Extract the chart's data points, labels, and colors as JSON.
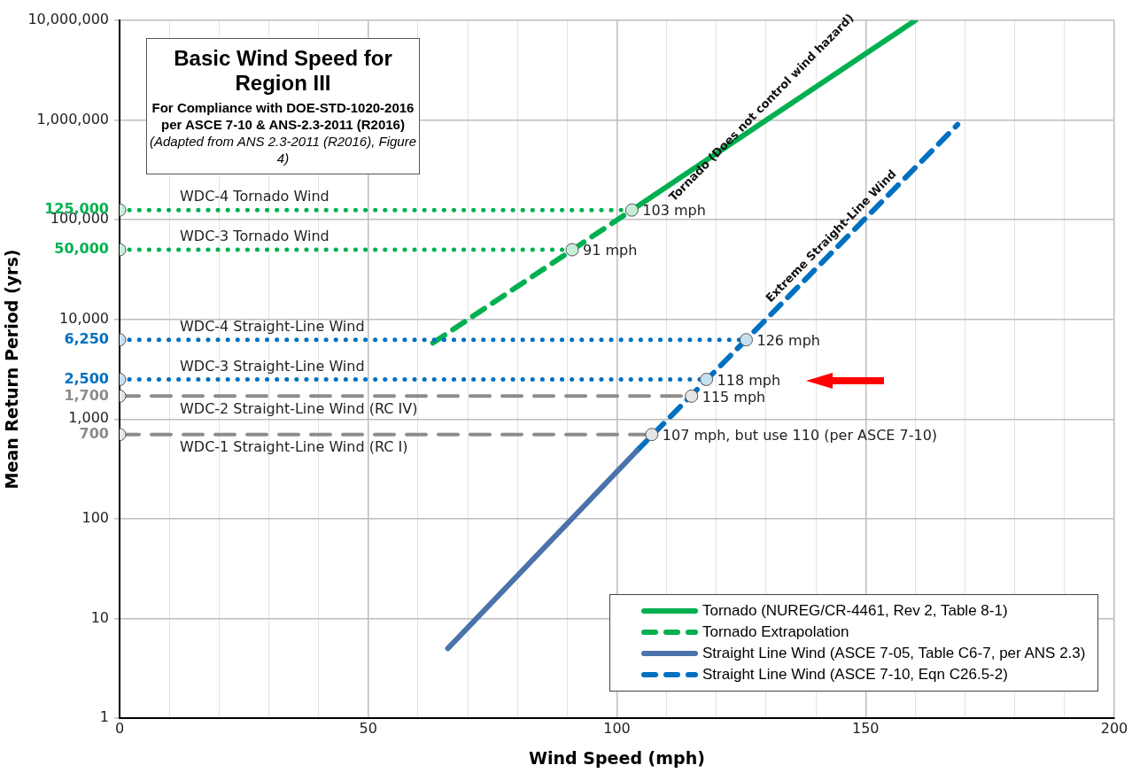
{
  "chart_data": {
    "type": "line",
    "title": "Basic Wind Speed for Region III",
    "subtitle": "For Compliance  with DOE-STD-1020-2016\nper ASCE 7-10  & ANS-2.3-2011 (R2016)",
    "annotations": [
      "(Adapted from ANS 2.3-2011 (R2016), Figure 4)",
      {
        "text": "Tornado (Does not control wind hazard)",
        "x": 131,
        "y": 1070000
      },
      {
        "text": "Extreme Straight-Line Wind",
        "x": 145,
        "y": 55000
      },
      {
        "text": "103 mph",
        "x": 103,
        "y": 125000
      },
      {
        "text": "91 mph",
        "x": 91,
        "y": 50000
      },
      {
        "text": "126 mph",
        "x": 126,
        "y": 6250
      },
      {
        "text": "118 mph",
        "x": 118,
        "y": 2500
      },
      {
        "text": "115 mph",
        "x": 115,
        "y": 1700
      },
      {
        "text": "107 mph, but use 110 (per ASCE 7-10)",
        "x": 107,
        "y": 700
      }
    ],
    "xlabel": "Wind Speed (mph)",
    "ylabel": "Mean Return Period (yrs)",
    "log": "y",
    "grid": true,
    "legend": "bottom right",
    "xlim": [
      0,
      200
    ],
    "xticks": [
      0,
      {
        "value": 10,
        "label": null
      },
      {
        "value": 20,
        "label": null
      },
      {
        "value": 30,
        "label": null
      },
      {
        "value": 40,
        "label": null
      },
      50,
      {
        "value": 60,
        "label": null
      },
      {
        "value": 70,
        "label": null
      },
      {
        "value": 80,
        "label": null
      },
      {
        "value": 90,
        "label": null
      },
      100,
      {
        "value": 110,
        "label": null
      },
      {
        "value": 120,
        "label": null
      },
      {
        "value": 130,
        "label": null
      },
      {
        "value": 140,
        "label": null
      },
      150,
      {
        "value": 160,
        "label": null
      },
      {
        "value": 170,
        "label": null
      },
      {
        "value": 180,
        "label": null
      },
      {
        "value": 190,
        "label": null
      },
      200
    ],
    "ylim": [
      1,
      10000000
    ],
    "yticks": [
      1,
      10,
      100,
      {
        "value": 700,
        "label": "700"
      },
      {
        "value": 1000,
        "label": "1,000"
      },
      {
        "value": 1700,
        "label": "1,700"
      },
      {
        "value": 2500,
        "label": "2,500"
      },
      {
        "value": 6250,
        "label": "6,250"
      },
      {
        "value": 10000,
        "label": "10,000"
      },
      {
        "value": 50000,
        "label": "50,000"
      },
      {
        "value": 100000,
        "label": "100,000"
      },
      {
        "value": 125000,
        "label": "125,000"
      },
      {
        "value": 1000000,
        "label": "1,000,000"
      },
      {
        "value": 10000000,
        "label": "10,000,000"
      }
    ],
    "series": [
      {
        "name": "Tornado (NUREG/CR-4461, Rev 2, Table 8-1)",
        "color": "#00b050",
        "line_style": "solid",
        "x": [
          103,
          160
        ],
        "values": [
          125000,
          10000000
        ]
      },
      {
        "name": "Tornado Extrapolation",
        "color": "#00b050",
        "line_style": "dashed",
        "x": [
          63,
          103
        ],
        "values": [
          5800,
          125000
        ]
      },
      {
        "name": "Straight Line Wind (ASCE 7-05, Table C6-7, per ANS 2.3)",
        "color": "#4a72ab",
        "line_style": "solid",
        "x": [
          66,
          104
        ],
        "values": [
          5,
          480
        ]
      },
      {
        "name": "Straight Line Wind (ASCE 7-10, Eqn C26.5-2)",
        "color": "#0070c0",
        "line_style": "dashed",
        "x": [
          104,
          168.5
        ],
        "values": [
          480,
          900000
        ]
      },
      {
        "name": "WDC-4 Tornado Wind",
        "color": "#00b050",
        "line_style": "dotted",
        "marker": "circle",
        "x": [
          0,
          103
        ],
        "values": [
          125000,
          125000
        ]
      },
      {
        "name": "WDC-3 Tornado Wind",
        "color": "#00b050",
        "line_style": "dotted",
        "marker": "circle",
        "x": [
          0,
          91
        ],
        "values": [
          50000,
          50000
        ]
      },
      {
        "name": "WDC-4 Straight-Line Wind",
        "color": "#0070c0",
        "line_style": "dotted",
        "marker": "circle",
        "x": [
          0,
          126
        ],
        "values": [
          6250,
          6250
        ]
      },
      {
        "name": "WDC-3 Straight-Line Wind",
        "color": "#0070c0",
        "line_style": "dotted",
        "marker": "circle",
        "x": [
          0,
          118
        ],
        "values": [
          2500,
          2500
        ]
      },
      {
        "name": "WDC-2 Straight-Line Wind (RC IV)",
        "color": "#8c8c8c",
        "line_style": "dashed",
        "marker": "circle",
        "x": [
          0,
          115
        ],
        "values": [
          1700,
          1700
        ]
      },
      {
        "name": "WDC-1 Straight-Line Wind (RC I)",
        "color": "#8c8c8c",
        "line_style": "dashed",
        "marker": "circle",
        "x": [
          0,
          107
        ],
        "values": [
          700,
          700
        ]
      }
    ]
  }
}
